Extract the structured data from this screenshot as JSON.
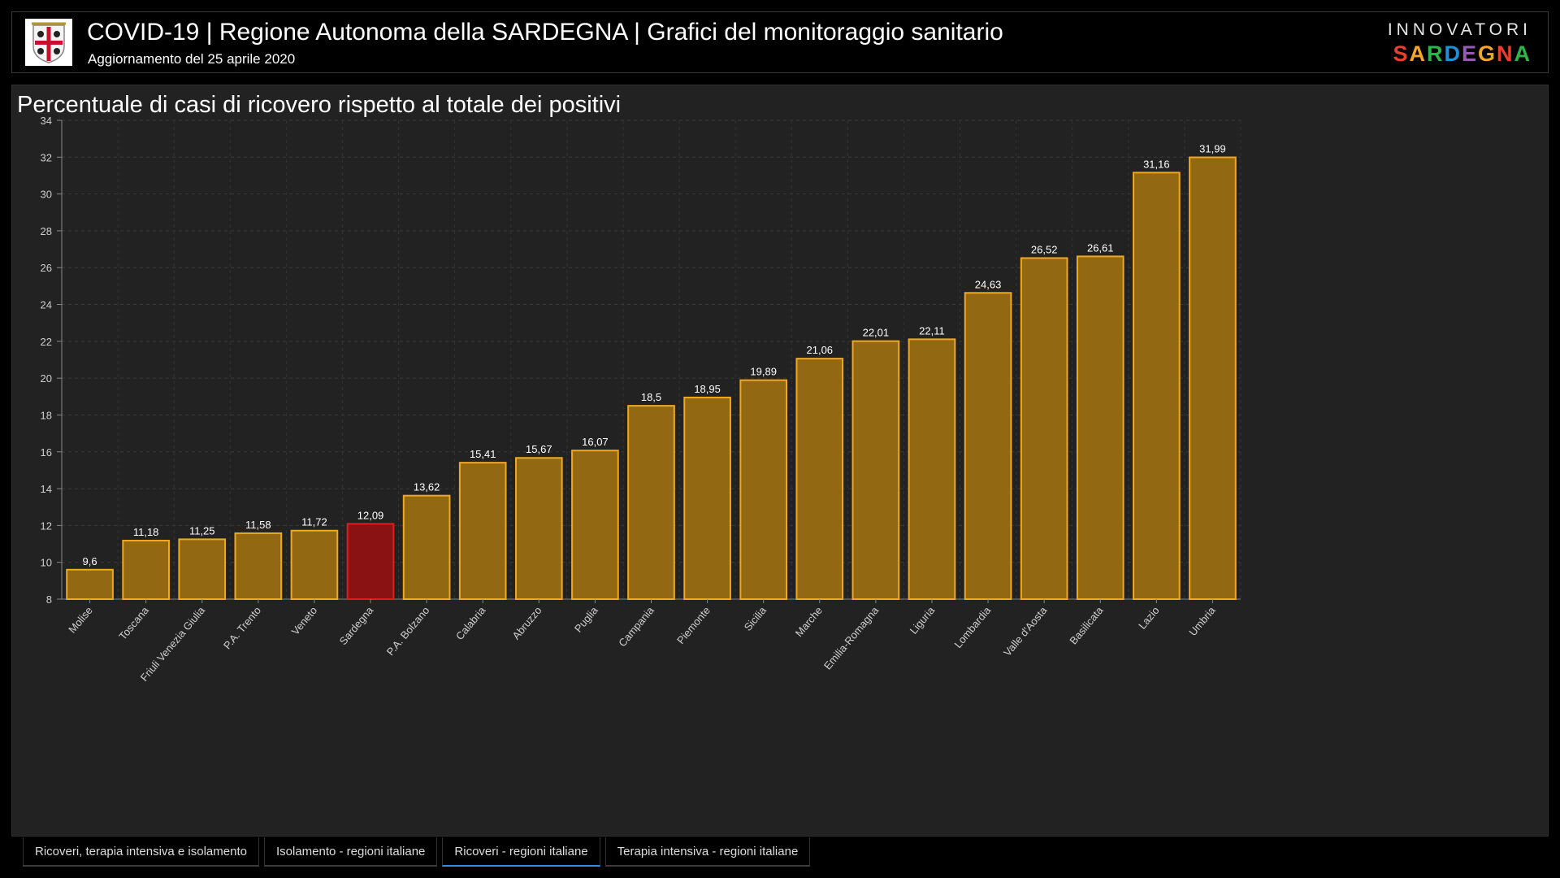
{
  "header": {
    "title": "COVID-19 | Regione Autonoma della SARDEGNA | Grafici del monitoraggio sanitario",
    "subtitle": "Aggiornamento del 25 aprile 2020",
    "brand_top": "INNOVATORI",
    "brand_bottom": "SARDEGNA",
    "brand_colors": [
      "#e8402c",
      "#f5a623",
      "#2fb44a",
      "#1f8fd6",
      "#9b59b6",
      "#f5a623",
      "#e8402c",
      "#2fb44a"
    ],
    "logo_icon": "sardinia-coat-of-arms-icon"
  },
  "chart_data": {
    "type": "bar",
    "title": "Percentuale di casi di ricovero rispetto al totale dei positivi",
    "categories": [
      "Molise",
      "Toscana",
      "Friuli Venezia Giulia",
      "P.A. Trento",
      "Veneto",
      "Sardegna",
      "P.A. Bolzano",
      "Calabria",
      "Abruzzo",
      "Puglia",
      "Campania",
      "Piemonte",
      "Sicilia",
      "Marche",
      "Emilia-Romagna",
      "Liguria",
      "Lombardia",
      "Valle d'Aosta",
      "Basilicata",
      "Lazio",
      "Umbria"
    ],
    "values": [
      9.6,
      11.18,
      11.25,
      11.58,
      11.72,
      12.09,
      13.62,
      15.41,
      15.67,
      16.07,
      18.5,
      18.95,
      19.89,
      21.06,
      22.01,
      22.11,
      24.63,
      26.52,
      26.61,
      31.16,
      31.99
    ],
    "value_labels": [
      "9,6",
      "11,18",
      "11,25",
      "11,58",
      "11,72",
      "12,09",
      "13,62",
      "15,41",
      "15,67",
      "16,07",
      "18,5",
      "18,95",
      "19,89",
      "21,06",
      "22,01",
      "22,11",
      "24,63",
      "26,52",
      "26,61",
      "31,16",
      "31,99"
    ],
    "highlight": "Sardegna",
    "ylim": [
      8,
      34
    ],
    "yticks": [
      8,
      10,
      12,
      14,
      16,
      18,
      20,
      22,
      24,
      26,
      28,
      30,
      32,
      34
    ],
    "grid": true,
    "colors": {
      "bar_fill": "#936812",
      "bar_stroke": "#f0a81f",
      "highlight_fill": "#8b1212",
      "highlight_stroke": "#e01c1c",
      "grid": "#3a3a3a",
      "axis_text": "#cfcfcf"
    }
  },
  "tabs": [
    {
      "label": "Ricoveri, terapia intensiva e isolamento",
      "active": false
    },
    {
      "label": "Isolamento - regioni italiane",
      "active": false
    },
    {
      "label": "Ricoveri - regioni italiane",
      "active": true
    },
    {
      "label": "Terapia intensiva - regioni italiane",
      "active": false
    }
  ]
}
